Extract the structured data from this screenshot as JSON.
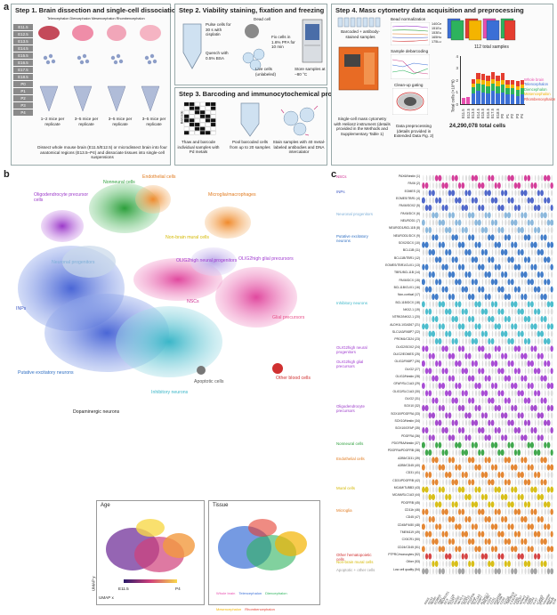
{
  "panel_a": {
    "letter": "a",
    "step1": {
      "title": "Step 1. Brain dissection and single-cell dissociation",
      "region_label": "Telencephalon Diencephalon Mesencephalon Rhombencephalon",
      "ages": [
        "E11.5",
        "E12.5",
        "E13.5",
        "E14.5",
        "E15.5",
        "E16.5",
        "E17.5",
        "E18.5",
        "P0",
        "P1",
        "P2",
        "P3",
        "P4"
      ],
      "replicates": [
        "1–2 mice per replicate",
        "3–5 mice per replicate",
        "3–5 mice per replicate",
        "3–5 mice per replicate"
      ],
      "caption": "Dissect whole mouse brain (E11.5/E12.5) or microdissect brain into four anatomical regions (E13.5–P4) and dissociate tissues into single-cell suspensions"
    },
    "step2": {
      "title": "Step 2. Viability staining, fixation and freezing",
      "pulse": "Pulse cells for 30 s with cisplatin",
      "quench": "Quench with 0.5% BSA",
      "dead": "Dead cell",
      "live": "Live cells (unlabeled)",
      "fix": "Fix cells in 1.6% PFA for 10 min",
      "store": "Store samples at −80 °C"
    },
    "step3": {
      "title": "Step 3. Barcoding and immunocytochemical processing",
      "barcode": "Barcode",
      "thaw": "Thaw and barcode individual samples with Pd metals",
      "pool": "Pool barcoded cells from up to 20 samples",
      "stain": "Stain samples with 40 metal-labeled antibodies and DNA intercalator"
    },
    "step4": {
      "title": "Step 4. Mass cytometry data acquisition and preprocessing",
      "barcoded": "Barcoded + antibody-stained samples",
      "bead_norm": "Bead normalization",
      "debarcoding": "Sample debarcoding",
      "cleanup": "Clean-up gating",
      "instrument": "Single-cell mass cytometry with Helios2 instrument (details provided in the Methods and Supplementary Table 1)",
      "preproc": "Data preprocessing (details provided in Extended Data Fig. 2)",
      "total_samples": "112 total samples",
      "total_cells": "24,290,078 total cells",
      "isotopes": [
        "140Ce",
        "151Eu",
        "153Eu",
        "165Ho",
        "175Lu"
      ],
      "legend": [
        "Whole brain",
        "Telencephalon",
        "Diencephalon",
        "Mesencephalon",
        "Rhombencephalon"
      ]
    }
  },
  "chart_data": {
    "type": "bar",
    "title": "",
    "xlabel": "",
    "ylabel": "Total cells (×10^6)",
    "ylim": [
      0,
      4
    ],
    "yticks": [
      0,
      1,
      2,
      3,
      4
    ],
    "categories": [
      "E11.5",
      "E12.5",
      "E13.5",
      "E14.5",
      "E15.5",
      "E16.5",
      "E17.5",
      "E18.5",
      "P0",
      "P1",
      "P2",
      "P3",
      "P4"
    ],
    "series": [
      {
        "name": "Whole brain",
        "color": "#e84fb0",
        "values": [
          0.5,
          0.6,
          0,
          0,
          0,
          0,
          0,
          0,
          0,
          0,
          0,
          0,
          0
        ]
      },
      {
        "name": "Telencephalon",
        "color": "#3b6fd6",
        "values": [
          0,
          0,
          0.9,
          1.1,
          1.0,
          0.9,
          1.1,
          0.9,
          1.0,
          0.8,
          0.8,
          0.7,
          0.8
        ]
      },
      {
        "name": "Diencephalon",
        "color": "#2db35d",
        "values": [
          0,
          0,
          0.5,
          0.6,
          0.6,
          0.6,
          0.6,
          0.6,
          0.6,
          0.5,
          0.5,
          0.5,
          0.5
        ]
      },
      {
        "name": "Mesencephalon",
        "color": "#f4b400",
        "values": [
          0,
          0,
          0.3,
          0.4,
          0.4,
          0.4,
          0.4,
          0.4,
          0.4,
          0.3,
          0.3,
          0.3,
          0.3
        ]
      },
      {
        "name": "Rhombencephalon",
        "color": "#e43d2f",
        "values": [
          0,
          0,
          0.4,
          0.5,
          0.5,
          0.5,
          0.6,
          0.5,
          0.6,
          0.4,
          0.4,
          0.4,
          0.4
        ]
      }
    ]
  },
  "panel_b": {
    "letter": "b",
    "clusters": [
      {
        "label": "Oligodendrocyte precursor cells",
        "color": "#9b39c9"
      },
      {
        "label": "Nonneural cells",
        "color": "#2c9f3b"
      },
      {
        "label": "Endothelial cells",
        "color": "#e17a1e"
      },
      {
        "label": "Microglia/macrophages",
        "color": "#e17a1e"
      },
      {
        "label": "Non-brain mural cells",
        "color": "#d4b800"
      },
      {
        "label": "Neuronal progenitors",
        "color": "#7fb0d8"
      },
      {
        "label": "NSCs",
        "color": "#cf2a8f"
      },
      {
        "label": "OLIG2high glial precursors",
        "color": "#a03ad0"
      },
      {
        "label": "OLIG2high neural progenitors",
        "color": "#a03ad0"
      },
      {
        "label": "INPs",
        "color": "#3d58c4"
      },
      {
        "label": "Glial precursors",
        "color": "#e8508a"
      },
      {
        "label": "Putative excitatory neurons",
        "color": "#2f6fc3"
      },
      {
        "label": "Inhibitory neurons",
        "color": "#3ab6c8"
      },
      {
        "label": "Dopaminergic neurons",
        "color": "#222222"
      },
      {
        "label": "Apoptotic cells",
        "color": "#555555"
      },
      {
        "label": "Other blood cells",
        "color": "#d03030"
      }
    ],
    "inset_age": {
      "title": "Age",
      "min_label": "E11.5",
      "max_label": "P4"
    },
    "inset_tissue": {
      "title": "Tissue",
      "legend": [
        "Whole brain",
        "Telencephalon",
        "Diencephalon",
        "Mesencephalon",
        "Rhombencephalon"
      ]
    },
    "umap_x": "UMAP x",
    "umap_y": "UMAP y"
  },
  "panel_c": {
    "letter": "c",
    "groups": [
      {
        "label": "NSCs",
        "color": "#cf2a8f"
      },
      {
        "label": "INPs",
        "color": "#3d58c4"
      },
      {
        "label": "Neuronal progenitors",
        "color": "#7fb0d8"
      },
      {
        "label": "Putative excitatory neurons",
        "color": "#2f6fc3"
      },
      {
        "label": "Inhibitory neurons",
        "color": "#3ab6c8"
      },
      {
        "label": "OLIG2high neural progenitors",
        "color": "#a03ad0"
      },
      {
        "label": "OLIG2high glial precursors",
        "color": "#a03ad0"
      },
      {
        "label": "Oligodendrocyte precursors",
        "color": "#9b39c9"
      },
      {
        "label": "Nonneural cells",
        "color": "#2c9f3b"
      },
      {
        "label": "Endothelial cells",
        "color": "#e17a1e"
      },
      {
        "label": "Mural cells",
        "color": "#d4b800"
      },
      {
        "label": "Microglia",
        "color": "#e17a1e"
      },
      {
        "label": "Other hematopoietic cells",
        "color": "#d03030"
      },
      {
        "label": "Non-brain mural cells",
        "color": "#d4b800"
      },
      {
        "label": "Apoptotic + other cells",
        "color": "#999999"
      }
    ],
    "row_labels": [
      "PAX6/Nestin (1)",
      "PAX6 (2)",
      "EOMES (3)",
      "EOMES/TBR1 (4)",
      "PAX6/SOX2 (5)",
      "PAX6/DCX (6)",
      "NEUROD1 (7)",
      "NEUROD1/BCL11B (8)",
      "NEUROD1/DCX (9)",
      "SOX2/DCX (10)",
      "BCL11B (11)",
      "BCL11B/TBR1 (12)",
      "EOMES/TBR1/CUX1 (13)",
      "TBR1/BCL11B (14)",
      "PAX6/DCX (15)",
      "BCL11B/CUX1 (16)",
      "Non-cortical (17)",
      "BCL11B/DCX (18)",
      "NKX2-1 (19)",
      "NTRK2/NKX2-1 (20)",
      "ALDH1L1/GAD67 (21)",
      "SLC1A3/FABP7 (22)",
      "PROM1/CD24 (23)",
      "OLIG2/SOX2 (24)",
      "OLIG2/EOMES (25)",
      "OLIG2/FABP7 (26)",
      "OLIG2 (27)",
      "OLIG2/Nestin (28)",
      "GFAP/SLC1A3 (29)",
      "OLIG2/SLC1A3 (30)",
      "OLIG2 (31)",
      "SOX10 (32)",
      "SOX10/PDGFRA (33)",
      "SOX10/Nestin (34)",
      "SOX10/GFAP (35)",
      "PDGFRA (36)",
      "PDGFRA/Nestin (37)",
      "PDGFRA/PDGFRB (38)",
      "A2B5/CD31 (39)",
      "A2B5/CD45 (40)",
      "CD31 (41)",
      "CD31/PDGFRB (42)",
      "MCAM/TUBB3 (43)",
      "MCAM/SLC1A3 (44)",
      "PDGFRB (45)",
      "CD11b (46)",
      "CD45 (47)",
      "CD45/F4/80 (48)",
      "TMEM119 (49)",
      "CX3CR1 (50)",
      "CD24/CD45 (51)",
      "PTPRC/monocytes (52)",
      "Other (53)",
      "Low cell quality (54)"
    ],
    "markers": [
      "PAX6",
      "SOX2",
      "Nestin",
      "EOMES",
      "TBR1",
      "NEUROD1",
      "DCX",
      "BCL11B",
      "CUX1",
      "SATB2",
      "NKX2-1",
      "OLIG2",
      "SOX10",
      "PDGFRA",
      "GFAP",
      "SLC1A3",
      "FABP7",
      "ALDH1L1",
      "PROM1",
      "CD24",
      "CD31",
      "PDGFRB",
      "MCAM",
      "CD45",
      "CD11b",
      "TMEM119",
      "CX3CR1",
      "F4/80",
      "GAD67",
      "NTRK2",
      "TUBB3",
      "A2B5",
      "CD44",
      "Ki-67",
      "cCasp3",
      "pHH3",
      "Vimentin",
      "MAP2",
      "NeuN",
      "SYP"
    ]
  }
}
